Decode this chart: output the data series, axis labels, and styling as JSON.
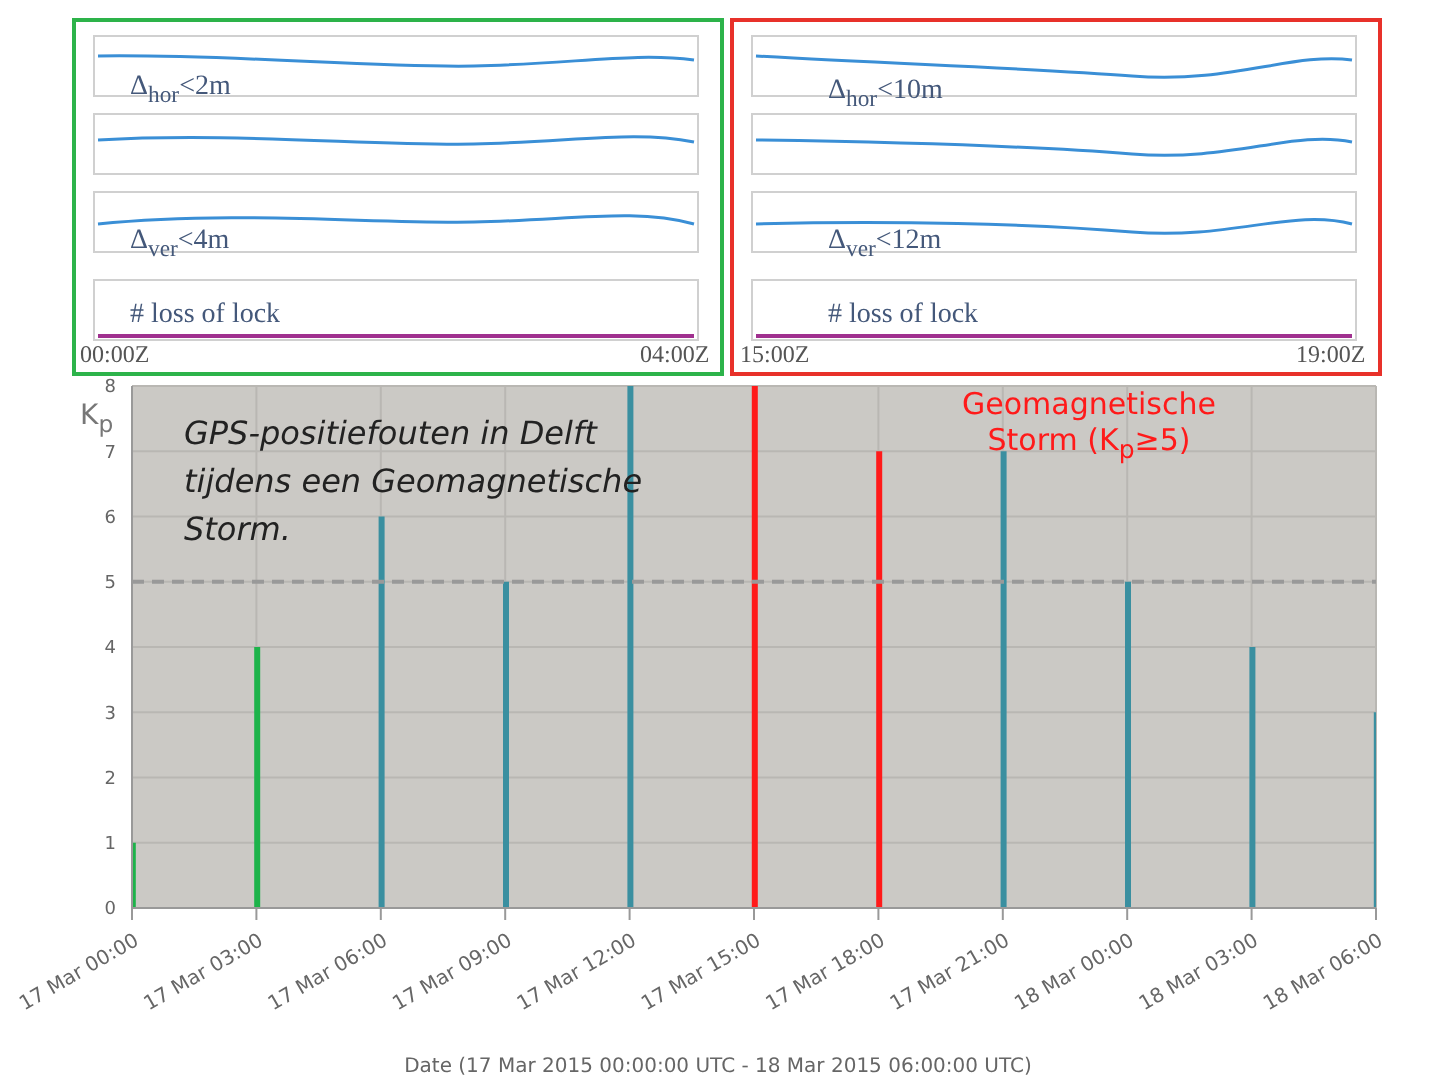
{
  "chart_data": {
    "type": "bar",
    "title": "GPS-positiefouten in Delft tijdens een Geomagnetische Storm.",
    "xlabel": "Date (17 Mar 2015 00:00:00 UTC - 18 Mar 2015 06:00:00 UTC)",
    "ylabel": "K$_{p}$",
    "categories": [
      "17 Mar 00:00",
      "17 Mar 03:00",
      "17 Mar 06:00",
      "17 Mar 09:00",
      "17 Mar 12:00",
      "17 Mar 15:00",
      "17 Mar 18:00",
      "17 Mar 21:00",
      "18 Mar 00:00",
      "18 Mar 03:00",
      "18 Mar 06:00"
    ],
    "values": [
      1,
      4,
      6,
      5,
      8,
      8,
      7,
      7,
      5,
      4,
      3
    ],
    "colors": [
      "#1db34a",
      "#1db34a",
      "#3a8fa0",
      "#3a8fa0",
      "#3a8fa0",
      "#ff1a1a",
      "#ff1a1a",
      "#3a8fa0",
      "#3a8fa0",
      "#3a8fa0",
      "#3a8fa0"
    ],
    "ylim": [
      0,
      8
    ],
    "yticks": [
      0,
      1,
      2,
      3,
      4,
      5,
      6,
      7,
      8
    ],
    "grid": true,
    "ref_lines": [
      {
        "axis": "y",
        "value": 5,
        "color": "#999999",
        "line_style": "dashed"
      }
    ],
    "annotations": [
      "Geomagnetische Storm (K$_{p}$≥5)",
      "Δ$_{hor}$<2m",
      "Δ$_{ver}$<4m",
      "# loss of lock",
      "00:00Z",
      "04:00Z",
      "Δ$_{hor}$<10m",
      "Δ$_{ver}$<12m",
      "# loss of lock",
      "15:00Z",
      "19:00Z"
    ]
  }
}
